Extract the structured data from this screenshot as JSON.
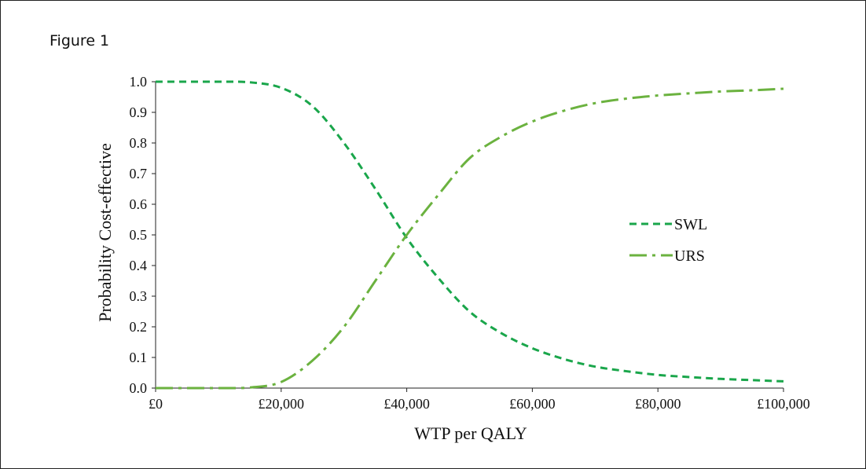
{
  "figure_label": "Figure 1",
  "colors": {
    "swl": "#1aa64b",
    "urs": "#6bb23f",
    "axis": "#222222"
  },
  "chart_data": {
    "type": "line",
    "xlabel": "WTP per QALY",
    "ylabel": "Probability Cost-effective",
    "xlim": [
      0,
      100000
    ],
    "ylim": [
      0,
      1
    ],
    "x_tick_values": [
      0,
      20000,
      40000,
      60000,
      80000,
      100000
    ],
    "x_tick_labels": [
      "£0",
      "£20,000",
      "£40,000",
      "£60,000",
      "£80,000",
      "£100,000"
    ],
    "y_tick_values": [
      0,
      0.1,
      0.2,
      0.3,
      0.4,
      0.5,
      0.6,
      0.7,
      0.8,
      0.9,
      1.0
    ],
    "y_tick_labels": [
      "0.0",
      "0.1",
      "0.2",
      "0.3",
      "0.4",
      "0.5",
      "0.6",
      "0.7",
      "0.8",
      "0.9",
      "1.0"
    ],
    "grid": false,
    "legend_position": "right",
    "series": [
      {
        "name": "SWL",
        "style": "dashed",
        "color": "#1aa64b",
        "x": [
          0,
          5000,
          10000,
          15000,
          20000,
          25000,
          30000,
          35000,
          40000,
          45000,
          50000,
          55000,
          60000,
          65000,
          70000,
          75000,
          80000,
          85000,
          90000,
          95000,
          100000
        ],
        "y": [
          1.0,
          1.0,
          1.0,
          0.998,
          0.98,
          0.92,
          0.8,
          0.65,
          0.49,
          0.36,
          0.25,
          0.18,
          0.13,
          0.095,
          0.07,
          0.055,
          0.043,
          0.036,
          0.03,
          0.026,
          0.022
        ]
      },
      {
        "name": "URS",
        "style": "dash-dot",
        "color": "#6bb23f",
        "x": [
          0,
          5000,
          10000,
          15000,
          20000,
          25000,
          30000,
          35000,
          40000,
          45000,
          50000,
          55000,
          60000,
          65000,
          70000,
          75000,
          80000,
          85000,
          90000,
          95000,
          100000
        ],
        "y": [
          0.0,
          0.0,
          0.0,
          0.002,
          0.02,
          0.09,
          0.2,
          0.35,
          0.5,
          0.63,
          0.75,
          0.82,
          0.87,
          0.905,
          0.93,
          0.945,
          0.955,
          0.962,
          0.968,
          0.972,
          0.977
        ]
      }
    ]
  }
}
